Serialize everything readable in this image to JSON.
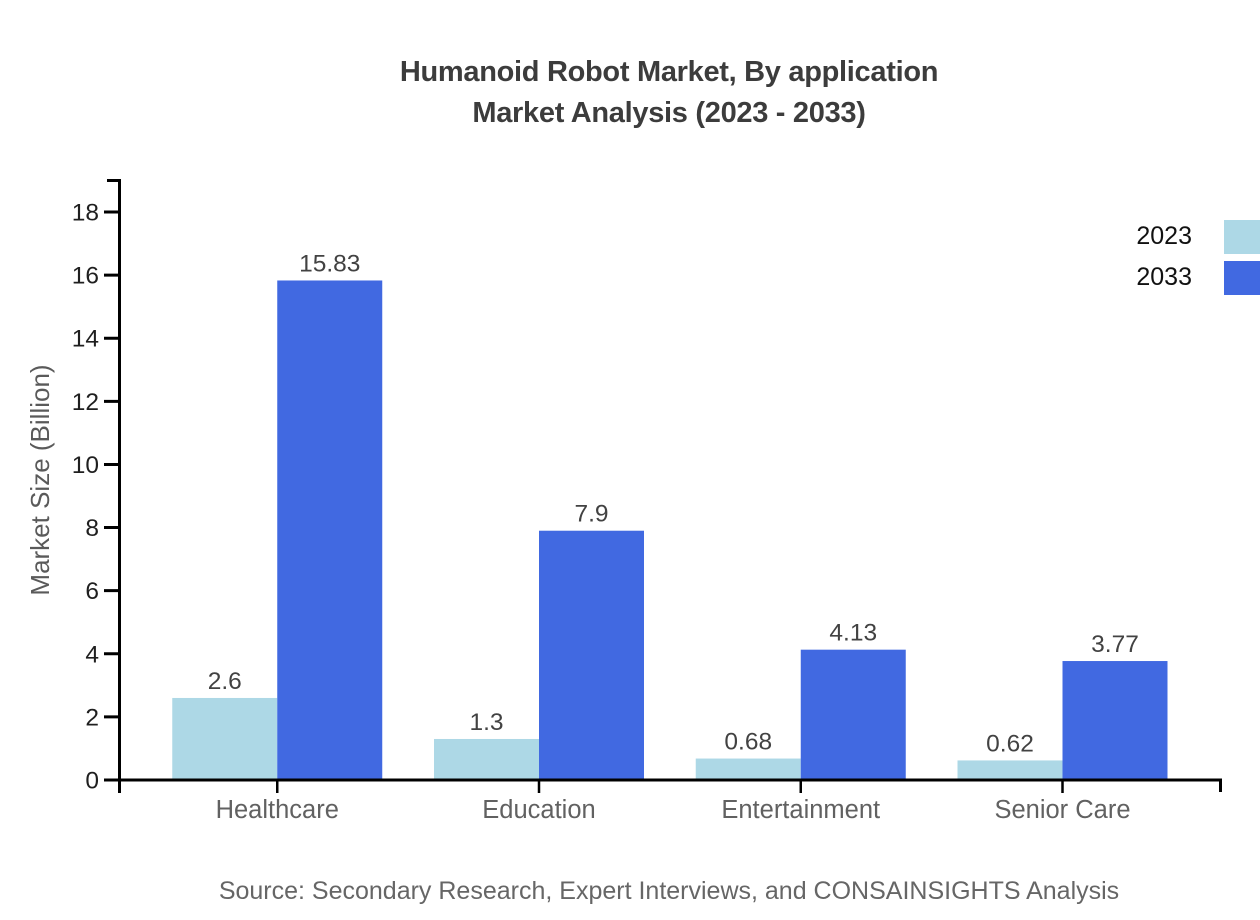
{
  "title": {
    "line1": "Humanoid Robot Market, By application",
    "line2": "Market Analysis (2023 - 2033)"
  },
  "source": "Source: Secondary Research, Expert Interviews, and CONSAINSIGHTS Analysis",
  "colors": {
    "series_2023": "#ADD8E6",
    "series_2033": "#4169E1",
    "axis": "#000000",
    "tick_label": "#1f1f1f",
    "category_label": "#616161",
    "value_label": "#424242",
    "title_text": "#3c3c3c",
    "background": "#ffffff"
  },
  "chart_data": {
    "type": "bar",
    "categories": [
      "Healthcare",
      "Education",
      "Entertainment",
      "Senior Care"
    ],
    "series": [
      {
        "name": "2023",
        "color": "#ADD8E6",
        "values": [
          2.6,
          1.3,
          0.68,
          0.62
        ]
      },
      {
        "name": "2033",
        "color": "#4169E1",
        "values": [
          15.83,
          7.9,
          4.13,
          3.77
        ]
      }
    ],
    "value_labels": [
      [
        "2.6",
        "1.3",
        "0.68",
        "0.62"
      ],
      [
        "15.83",
        "7.9",
        "4.13",
        "3.77"
      ]
    ],
    "title": "Humanoid Robot Market, By application Market Analysis (2023 - 2033)",
    "xlabel": "",
    "ylabel": "Market Size (Billion)",
    "ylim": [
      0,
      18
    ],
    "yticks": [
      0,
      2,
      4,
      6,
      8,
      10,
      12,
      14,
      16,
      18
    ],
    "grid": false,
    "legend_position": "top-right"
  }
}
